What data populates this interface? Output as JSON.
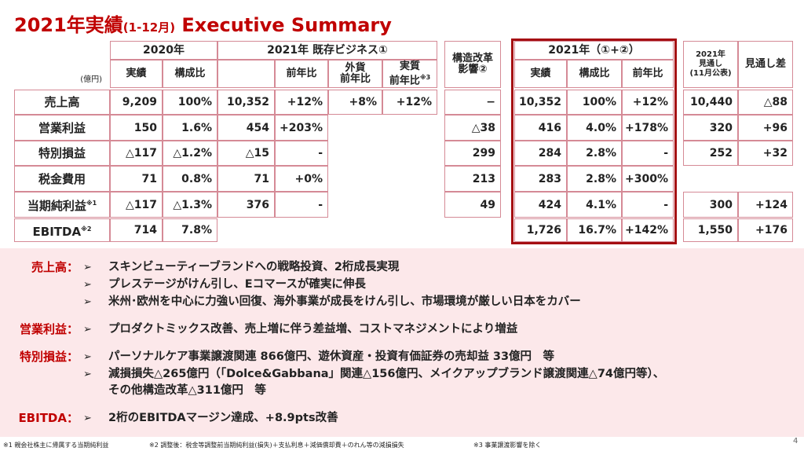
{
  "title": {
    "main": "2021年実績",
    "sub": "(1-12月)",
    "rest": "Executive Summary"
  },
  "table": {
    "unit": "(億円)",
    "blocks": [
      {
        "label": "2020年",
        "columns": [
          {
            "lines": [
              "実績"
            ]
          },
          {
            "lines": [
              "構成比"
            ]
          }
        ]
      },
      {
        "label": "2021年 既存ビジネス①",
        "columns": [
          null,
          {
            "lines": [
              "前年比"
            ]
          },
          {
            "lines": [
              "外貨",
              "前年比"
            ]
          },
          {
            "lines": [
              "実質",
              "前年比"
            ],
            "note": "※3"
          }
        ]
      },
      {
        "columns": [
          {
            "lines": [
              "構造改革",
              "影響②"
            ]
          }
        ]
      },
      {
        "label": "2021年（①+②）",
        "highlight": true,
        "columns": [
          {
            "lines": [
              "実績"
            ]
          },
          {
            "lines": [
              "構成比"
            ]
          },
          {
            "lines": [
              "前年比"
            ]
          }
        ]
      },
      {
        "columns": [
          {
            "lines": [
              "2021年",
              "見通し",
              "(11月公表)"
            ]
          },
          {
            "lines": [
              "見通し差"
            ]
          }
        ]
      }
    ],
    "rows": [
      {
        "label": "売上高",
        "cells": [
          "9,209",
          "100%",
          "10,352",
          "+12%",
          "+8%",
          "+12%",
          "−",
          "10,352",
          "100%",
          "+12%",
          "10,440",
          "△88"
        ]
      },
      {
        "label": "営業利益",
        "cells": [
          "150",
          "1.6%",
          "454",
          "+203%",
          null,
          null,
          "△38",
          "416",
          "4.0%",
          "+178%",
          "320",
          "+96"
        ]
      },
      {
        "label": "特別損益",
        "cells": [
          "△117",
          "△1.2%",
          "△15",
          "-",
          null,
          null,
          "299",
          "284",
          "2.8%",
          "-",
          "252",
          "+32"
        ]
      },
      {
        "label": "税金費用",
        "cells": [
          "71",
          "0.8%",
          "71",
          "+0%",
          null,
          null,
          "213",
          "283",
          "2.8%",
          "+300%",
          null,
          null
        ]
      },
      {
        "label": "当期純利益",
        "note": "※1",
        "cells": [
          "△117",
          "△1.3%",
          "376",
          "-",
          null,
          null,
          "49",
          "424",
          "4.1%",
          "-",
          "300",
          "+124"
        ]
      },
      {
        "label": "EBITDA",
        "note": "※2",
        "cells": [
          "714",
          "7.8%",
          null,
          null,
          null,
          null,
          null,
          "1,726",
          "16.7%",
          "+142%",
          "1,550",
          "+176"
        ]
      }
    ]
  },
  "summary": [
    {
      "label": "売上高：",
      "items": [
        {
          "lines": [
            "スキンビューティーブランドへの戦略投資、2桁成長実現"
          ]
        },
        {
          "lines": [
            "プレステージがけん引し、Eコマースが確実に伸長"
          ]
        },
        {
          "lines": [
            "米州･欧州を中心に力強い回復、海外事業が成長をけん引し、市場環境が厳しい日本をカバー"
          ]
        }
      ]
    },
    {
      "label": "営業利益：",
      "items": [
        {
          "lines": [
            "プロダクトミックス改善、売上増に伴う差益増、コストマネジメントにより増益"
          ]
        }
      ]
    },
    {
      "label": "特別損益：",
      "items": [
        {
          "lines": [
            "パーソナルケア事業譲渡関連 866億円、遊休資産・投資有価証券の売却益 33億円　等"
          ]
        },
        {
          "lines": [
            "減損損失△265億円（「Dolce&Gabbana」関連△156億円、メイクアップブランド譲渡関連△74億円等）、",
            "その他構造改革△311億円　等"
          ]
        }
      ]
    },
    {
      "label": "EBITDA：",
      "items": [
        {
          "lines": [
            "2桁のEBITDAマージン達成、+8.9pts改善"
          ]
        }
      ]
    }
  ],
  "footnotes": [
    "※1 親会社株主に帰属する当期純利益",
    "※2 調整後：税金等調整前当期純利益(損失)＋支払利息＋減価償却費＋のれん等の減損損失",
    "※3 事業譲渡影響を除く"
  ],
  "page_number": "4"
}
